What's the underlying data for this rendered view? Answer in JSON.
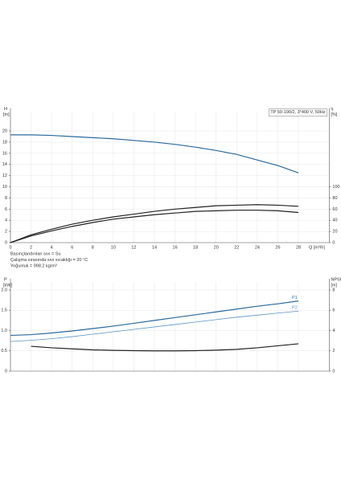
{
  "chart_data": [
    {
      "type": "line",
      "title": "TP 50-190/2, 3*400 V, 50Hz",
      "ylabel": "H",
      "yunit": "[m]",
      "y2label": "η",
      "y2unit": "[%]",
      "xlabel": "Q [m³/h]",
      "x": [
        0,
        2,
        4,
        6,
        8,
        10,
        12,
        14,
        16,
        18,
        20,
        22,
        24,
        26,
        28
      ],
      "xlim": [
        0,
        31
      ],
      "xticks": [
        0,
        2,
        4,
        6,
        8,
        10,
        12,
        14,
        16,
        18,
        20,
        22,
        24,
        26,
        28
      ],
      "xtick_labels": true,
      "ylim": [
        0,
        23.5
      ],
      "yticks": [
        0,
        2,
        4,
        6,
        8,
        10,
        12,
        14,
        16,
        18,
        20
      ],
      "y2lim": [
        0,
        235
      ],
      "y2ticks": [
        0,
        20,
        40,
        60,
        80,
        100
      ],
      "grid": true,
      "series": [
        {
          "color": "#2b6a9e",
          "values": [
            19.3,
            19.3,
            19.2,
            19.0,
            18.8,
            18.6,
            18.3,
            18.0,
            17.6,
            17.1,
            16.5,
            15.8,
            14.8,
            13.8,
            12.5
          ]
        },
        {
          "color": "#222222",
          "axis": "y2",
          "values": [
            0,
            14,
            24,
            33,
            40,
            46,
            51,
            56,
            60,
            63,
            66,
            67,
            68,
            67,
            65
          ]
        },
        {
          "color": "#222222",
          "axis": "y2",
          "values": [
            0,
            12,
            21,
            29,
            36,
            42,
            46,
            50,
            53,
            56,
            57,
            58,
            58,
            57,
            54
          ]
        }
      ],
      "annotations": [
        "Basınçlandırılan sıvı = Su",
        "Çalışma sırasında sıvı sıcaklığı = 20 °C",
        "Yoğunluk = 998.2 kg/m³"
      ]
    },
    {
      "type": "line",
      "ylabel": "P",
      "yunit": "[kW]",
      "y2label": "NPSH",
      "y2unit": "[m]",
      "x": [
        0,
        2,
        4,
        6,
        8,
        10,
        12,
        14,
        16,
        18,
        20,
        22,
        24,
        26,
        28
      ],
      "xlim": [
        0,
        31
      ],
      "xticks": [
        0,
        2,
        4,
        6,
        8,
        10,
        12,
        14,
        16,
        18,
        20,
        22,
        24,
        26,
        28
      ],
      "xtick_labels": false,
      "ylim": [
        0,
        2.2
      ],
      "yticks": [
        0,
        0.5,
        {
          "value": 1,
          "label": "1.0"
        },
        1.5,
        {
          "value": 2,
          "label": "2.0"
        }
      ],
      "y2lim": [
        0,
        8.8
      ],
      "y2ticks": [
        0,
        2,
        4,
        6,
        8
      ],
      "grid": true,
      "series": [
        {
          "name": "P1",
          "color": "#2b6a9e",
          "values": [
            0.88,
            0.9,
            0.94,
            0.99,
            1.05,
            1.11,
            1.18,
            1.25,
            1.32,
            1.39,
            1.46,
            1.53,
            1.6,
            1.66,
            1.73
          ]
        },
        {
          "name": "P2",
          "color": "#5a93c6",
          "values": [
            0.73,
            0.76,
            0.8,
            0.85,
            0.91,
            0.97,
            1.03,
            1.09,
            1.15,
            1.21,
            1.27,
            1.33,
            1.38,
            1.43,
            1.48
          ]
        },
        {
          "color": "#222222",
          "axis": "y2",
          "values": [
            null,
            2.45,
            2.3,
            2.2,
            2.1,
            2.05,
            2.02,
            2.0,
            2.0,
            2.02,
            2.07,
            2.15,
            2.3,
            2.5,
            2.7
          ]
        }
      ]
    }
  ]
}
